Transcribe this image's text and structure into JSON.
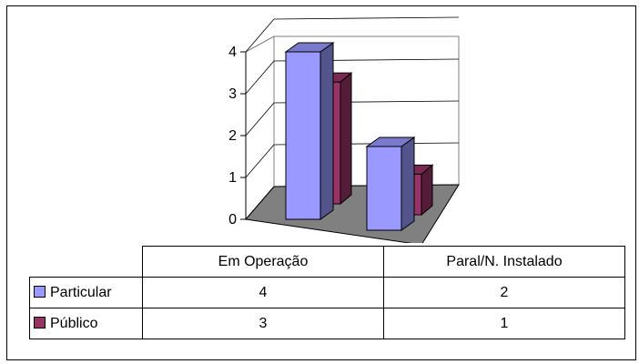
{
  "chart_data": {
    "type": "bar",
    "categories": [
      "Em Operação",
      "Paral/N. Instalado"
    ],
    "series": [
      {
        "name": "Particular",
        "values": [
          4,
          2
        ],
        "color": "#9999ff"
      },
      {
        "name": "Público",
        "values": [
          3,
          1
        ],
        "color": "#993366"
      }
    ],
    "ylim": [
      0,
      4
    ],
    "yticks": [
      "0",
      "1",
      "2",
      "3",
      "4"
    ],
    "grid": true,
    "three_d": true,
    "legend": "data-table-below"
  },
  "table": {
    "columns": [
      "Em Operação",
      "Paral/N. Instalado"
    ],
    "rows": [
      {
        "label": "Particular",
        "values": [
          "4",
          "2"
        ]
      },
      {
        "label": "Público",
        "values": [
          "3",
          "1"
        ]
      }
    ]
  }
}
